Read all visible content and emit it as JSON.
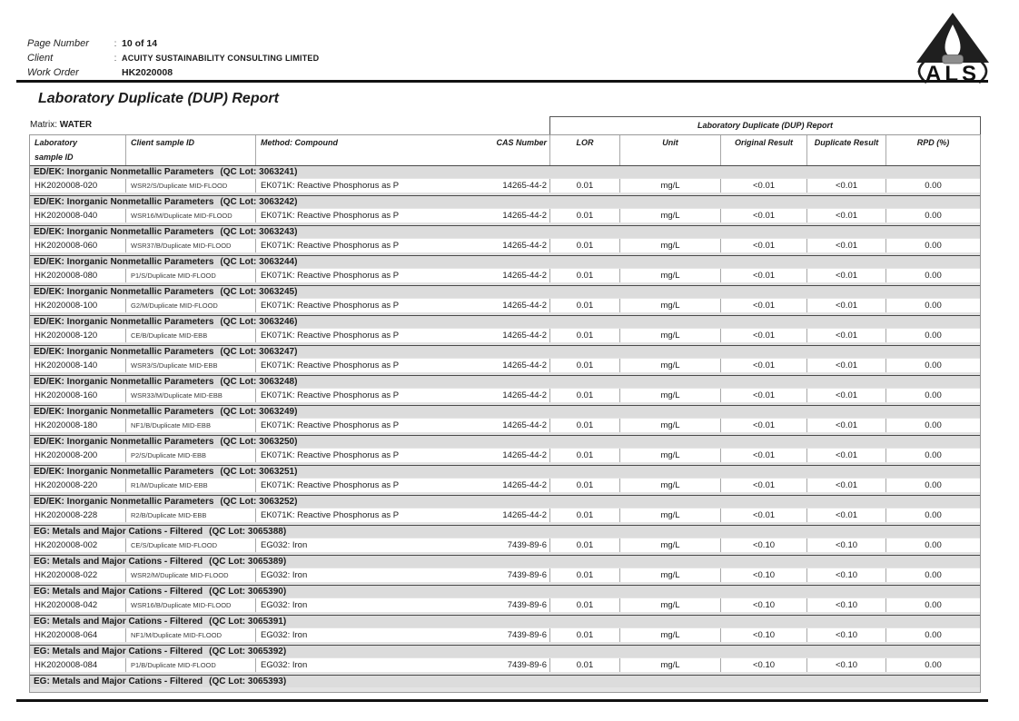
{
  "page_header": {
    "fields": [
      {
        "label": "Page Number",
        "colon": ":",
        "value": "10 of 14"
      },
      {
        "label": "Client",
        "colon": ":",
        "value": "ACUITY SUSTAINABILITY CONSULTING LIMITED"
      },
      {
        "label": "Work Order",
        "colon": "",
        "value": "HK2020008"
      }
    ],
    "logo_text": "ALS"
  },
  "report": {
    "title": "Laboratory Duplicate (DUP) Report",
    "matrix_label": "Matrix:",
    "matrix_value": "WATER",
    "table": {
      "group_header": "Laboratory Duplicate (DUP) Report",
      "columns": {
        "lab_id_line1": "Laboratory",
        "lab_id_line2": "sample ID",
        "client_id": "Client sample ID",
        "method": "Method: Compound",
        "cas": "CAS Number",
        "lor": "LOR",
        "unit": "Unit",
        "original": "Original Result",
        "duplicate": "Duplicate Result",
        "rpd": "RPD (%)"
      },
      "sections": [
        {
          "name": "ED/EK: Inorganic Nonmetallic Parameters",
          "qc": "(QC Lot: 3063241)",
          "rows": [
            [
              "HK2020008-020",
              "WSR2/S/Duplicate MID-FLOOD",
              "EK071K: Reactive Phosphorus as P",
              "14265-44-2",
              "0.01",
              "mg/L",
              "<0.01",
              "<0.01",
              "0.00"
            ]
          ]
        },
        {
          "name": "ED/EK: Inorganic Nonmetallic Parameters",
          "qc": "(QC Lot: 3063242)",
          "rows": [
            [
              "HK2020008-040",
              "WSR16/M/Duplicate MID-FLOOD",
              "EK071K: Reactive Phosphorus as P",
              "14265-44-2",
              "0.01",
              "mg/L",
              "<0.01",
              "<0.01",
              "0.00"
            ]
          ]
        },
        {
          "name": "ED/EK: Inorganic Nonmetallic Parameters",
          "qc": "(QC Lot: 3063243)",
          "rows": [
            [
              "HK2020008-060",
              "WSR37/B/Duplicate MID-FLOOD",
              "EK071K: Reactive Phosphorus as P",
              "14265-44-2",
              "0.01",
              "mg/L",
              "<0.01",
              "<0.01",
              "0.00"
            ]
          ]
        },
        {
          "name": "ED/EK: Inorganic Nonmetallic Parameters",
          "qc": "(QC Lot: 3063244)",
          "rows": [
            [
              "HK2020008-080",
              "P1/S/Duplicate MID-FLOOD",
              "EK071K: Reactive Phosphorus as P",
              "14265-44-2",
              "0.01",
              "mg/L",
              "<0.01",
              "<0.01",
              "0.00"
            ]
          ]
        },
        {
          "name": "ED/EK: Inorganic Nonmetallic Parameters",
          "qc": "(QC Lot: 3063245)",
          "rows": [
            [
              "HK2020008-100",
              "G2/M/Duplicate MID-FLOOD",
              "EK071K: Reactive Phosphorus as P",
              "14265-44-2",
              "0.01",
              "mg/L",
              "<0.01",
              "<0.01",
              "0.00"
            ]
          ]
        },
        {
          "name": "ED/EK: Inorganic Nonmetallic Parameters",
          "qc": "(QC Lot: 3063246)",
          "rows": [
            [
              "HK2020008-120",
              "CE/B/Duplicate MID-EBB",
              "EK071K: Reactive Phosphorus as P",
              "14265-44-2",
              "0.01",
              "mg/L",
              "<0.01",
              "<0.01",
              "0.00"
            ]
          ]
        },
        {
          "name": "ED/EK: Inorganic Nonmetallic Parameters",
          "qc": "(QC Lot: 3063247)",
          "rows": [
            [
              "HK2020008-140",
              "WSR3/S/Duplicate MID-EBB",
              "EK071K: Reactive Phosphorus as P",
              "14265-44-2",
              "0.01",
              "mg/L",
              "<0.01",
              "<0.01",
              "0.00"
            ]
          ]
        },
        {
          "name": "ED/EK: Inorganic Nonmetallic Parameters",
          "qc": "(QC Lot: 3063248)",
          "rows": [
            [
              "HK2020008-160",
              "WSR33/M/Duplicate MID-EBB",
              "EK071K: Reactive Phosphorus as P",
              "14265-44-2",
              "0.01",
              "mg/L",
              "<0.01",
              "<0.01",
              "0.00"
            ]
          ]
        },
        {
          "name": "ED/EK: Inorganic Nonmetallic Parameters",
          "qc": "(QC Lot: 3063249)",
          "rows": [
            [
              "HK2020008-180",
              "NF1/B/Duplicate MID-EBB",
              "EK071K: Reactive Phosphorus as P",
              "14265-44-2",
              "0.01",
              "mg/L",
              "<0.01",
              "<0.01",
              "0.00"
            ]
          ]
        },
        {
          "name": "ED/EK: Inorganic Nonmetallic Parameters",
          "qc": "(QC Lot: 3063250)",
          "rows": [
            [
              "HK2020008-200",
              "P2/S/Duplicate MID-EBB",
              "EK071K: Reactive Phosphorus as P",
              "14265-44-2",
              "0.01",
              "mg/L",
              "<0.01",
              "<0.01",
              "0.00"
            ]
          ]
        },
        {
          "name": "ED/EK: Inorganic Nonmetallic Parameters",
          "qc": "(QC Lot: 3063251)",
          "rows": [
            [
              "HK2020008-220",
              "R1/M/Duplicate MID-EBB",
              "EK071K: Reactive Phosphorus as P",
              "14265-44-2",
              "0.01",
              "mg/L",
              "<0.01",
              "<0.01",
              "0.00"
            ]
          ]
        },
        {
          "name": "ED/EK: Inorganic Nonmetallic Parameters",
          "qc": "(QC Lot: 3063252)",
          "rows": [
            [
              "HK2020008-228",
              "R2/B/Duplicate MID-EBB",
              "EK071K: Reactive Phosphorus as P",
              "14265-44-2",
              "0.01",
              "mg/L",
              "<0.01",
              "<0.01",
              "0.00"
            ]
          ]
        },
        {
          "name": "EG: Metals and Major Cations - Filtered",
          "qc": "(QC Lot: 3065388)",
          "rows": [
            [
              "HK2020008-002",
              "CE/S/Duplicate MID-FLOOD",
              "EG032: Iron",
              "7439-89-6",
              "0.01",
              "mg/L",
              "<0.10",
              "<0.10",
              "0.00"
            ]
          ]
        },
        {
          "name": "EG: Metals and Major Cations - Filtered",
          "qc": "(QC Lot: 3065389)",
          "rows": [
            [
              "HK2020008-022",
              "WSR2/M/Duplicate MID-FLOOD",
              "EG032: Iron",
              "7439-89-6",
              "0.01",
              "mg/L",
              "<0.10",
              "<0.10",
              "0.00"
            ]
          ]
        },
        {
          "name": "EG: Metals and Major Cations - Filtered",
          "qc": "(QC Lot: 3065390)",
          "rows": [
            [
              "HK2020008-042",
              "WSR16/B/Duplicate MID-FLOOD",
              "EG032: Iron",
              "7439-89-6",
              "0.01",
              "mg/L",
              "<0.10",
              "<0.10",
              "0.00"
            ]
          ]
        },
        {
          "name": "EG: Metals and Major Cations - Filtered",
          "qc": "(QC Lot: 3065391)",
          "rows": [
            [
              "HK2020008-064",
              "NF1/M/Duplicate MID-FLOOD",
              "EG032: Iron",
              "7439-89-6",
              "0.01",
              "mg/L",
              "<0.10",
              "<0.10",
              "0.00"
            ]
          ]
        },
        {
          "name": "EG: Metals and Major Cations - Filtered",
          "qc": "(QC Lot: 3065392)",
          "rows": [
            [
              "HK2020008-084",
              "P1/B/Duplicate MID-FLOOD",
              "EG032: Iron",
              "7439-89-6",
              "0.01",
              "mg/L",
              "<0.10",
              "<0.10",
              "0.00"
            ]
          ]
        },
        {
          "name": "EG: Metals and Major Cations - Filtered",
          "qc": "(QC Lot: 3065393)",
          "rows": []
        }
      ]
    }
  }
}
